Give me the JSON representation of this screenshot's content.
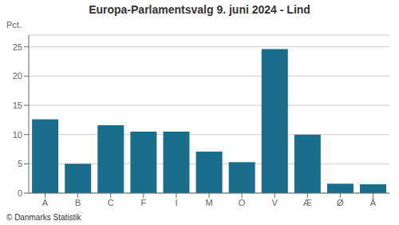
{
  "chart_data": {
    "type": "bar",
    "title": "Europa-Parlamentsvalg 9. juni 2024 - Lind",
    "ylabel": "Pct.",
    "footnote": "© Danmarks Statistik",
    "categories": [
      "A",
      "B",
      "C",
      "F",
      "I",
      "M",
      "O",
      "V",
      "Æ",
      "Ø",
      "Å"
    ],
    "values": [
      12.6,
      5.0,
      11.6,
      10.5,
      10.5,
      7.1,
      5.3,
      24.6,
      10.0,
      1.6,
      1.5
    ],
    "color": "#1a6e8c",
    "ylim": [
      0,
      27
    ],
    "yticks": [
      0,
      5,
      10,
      15,
      20,
      25
    ],
    "grid": true
  }
}
